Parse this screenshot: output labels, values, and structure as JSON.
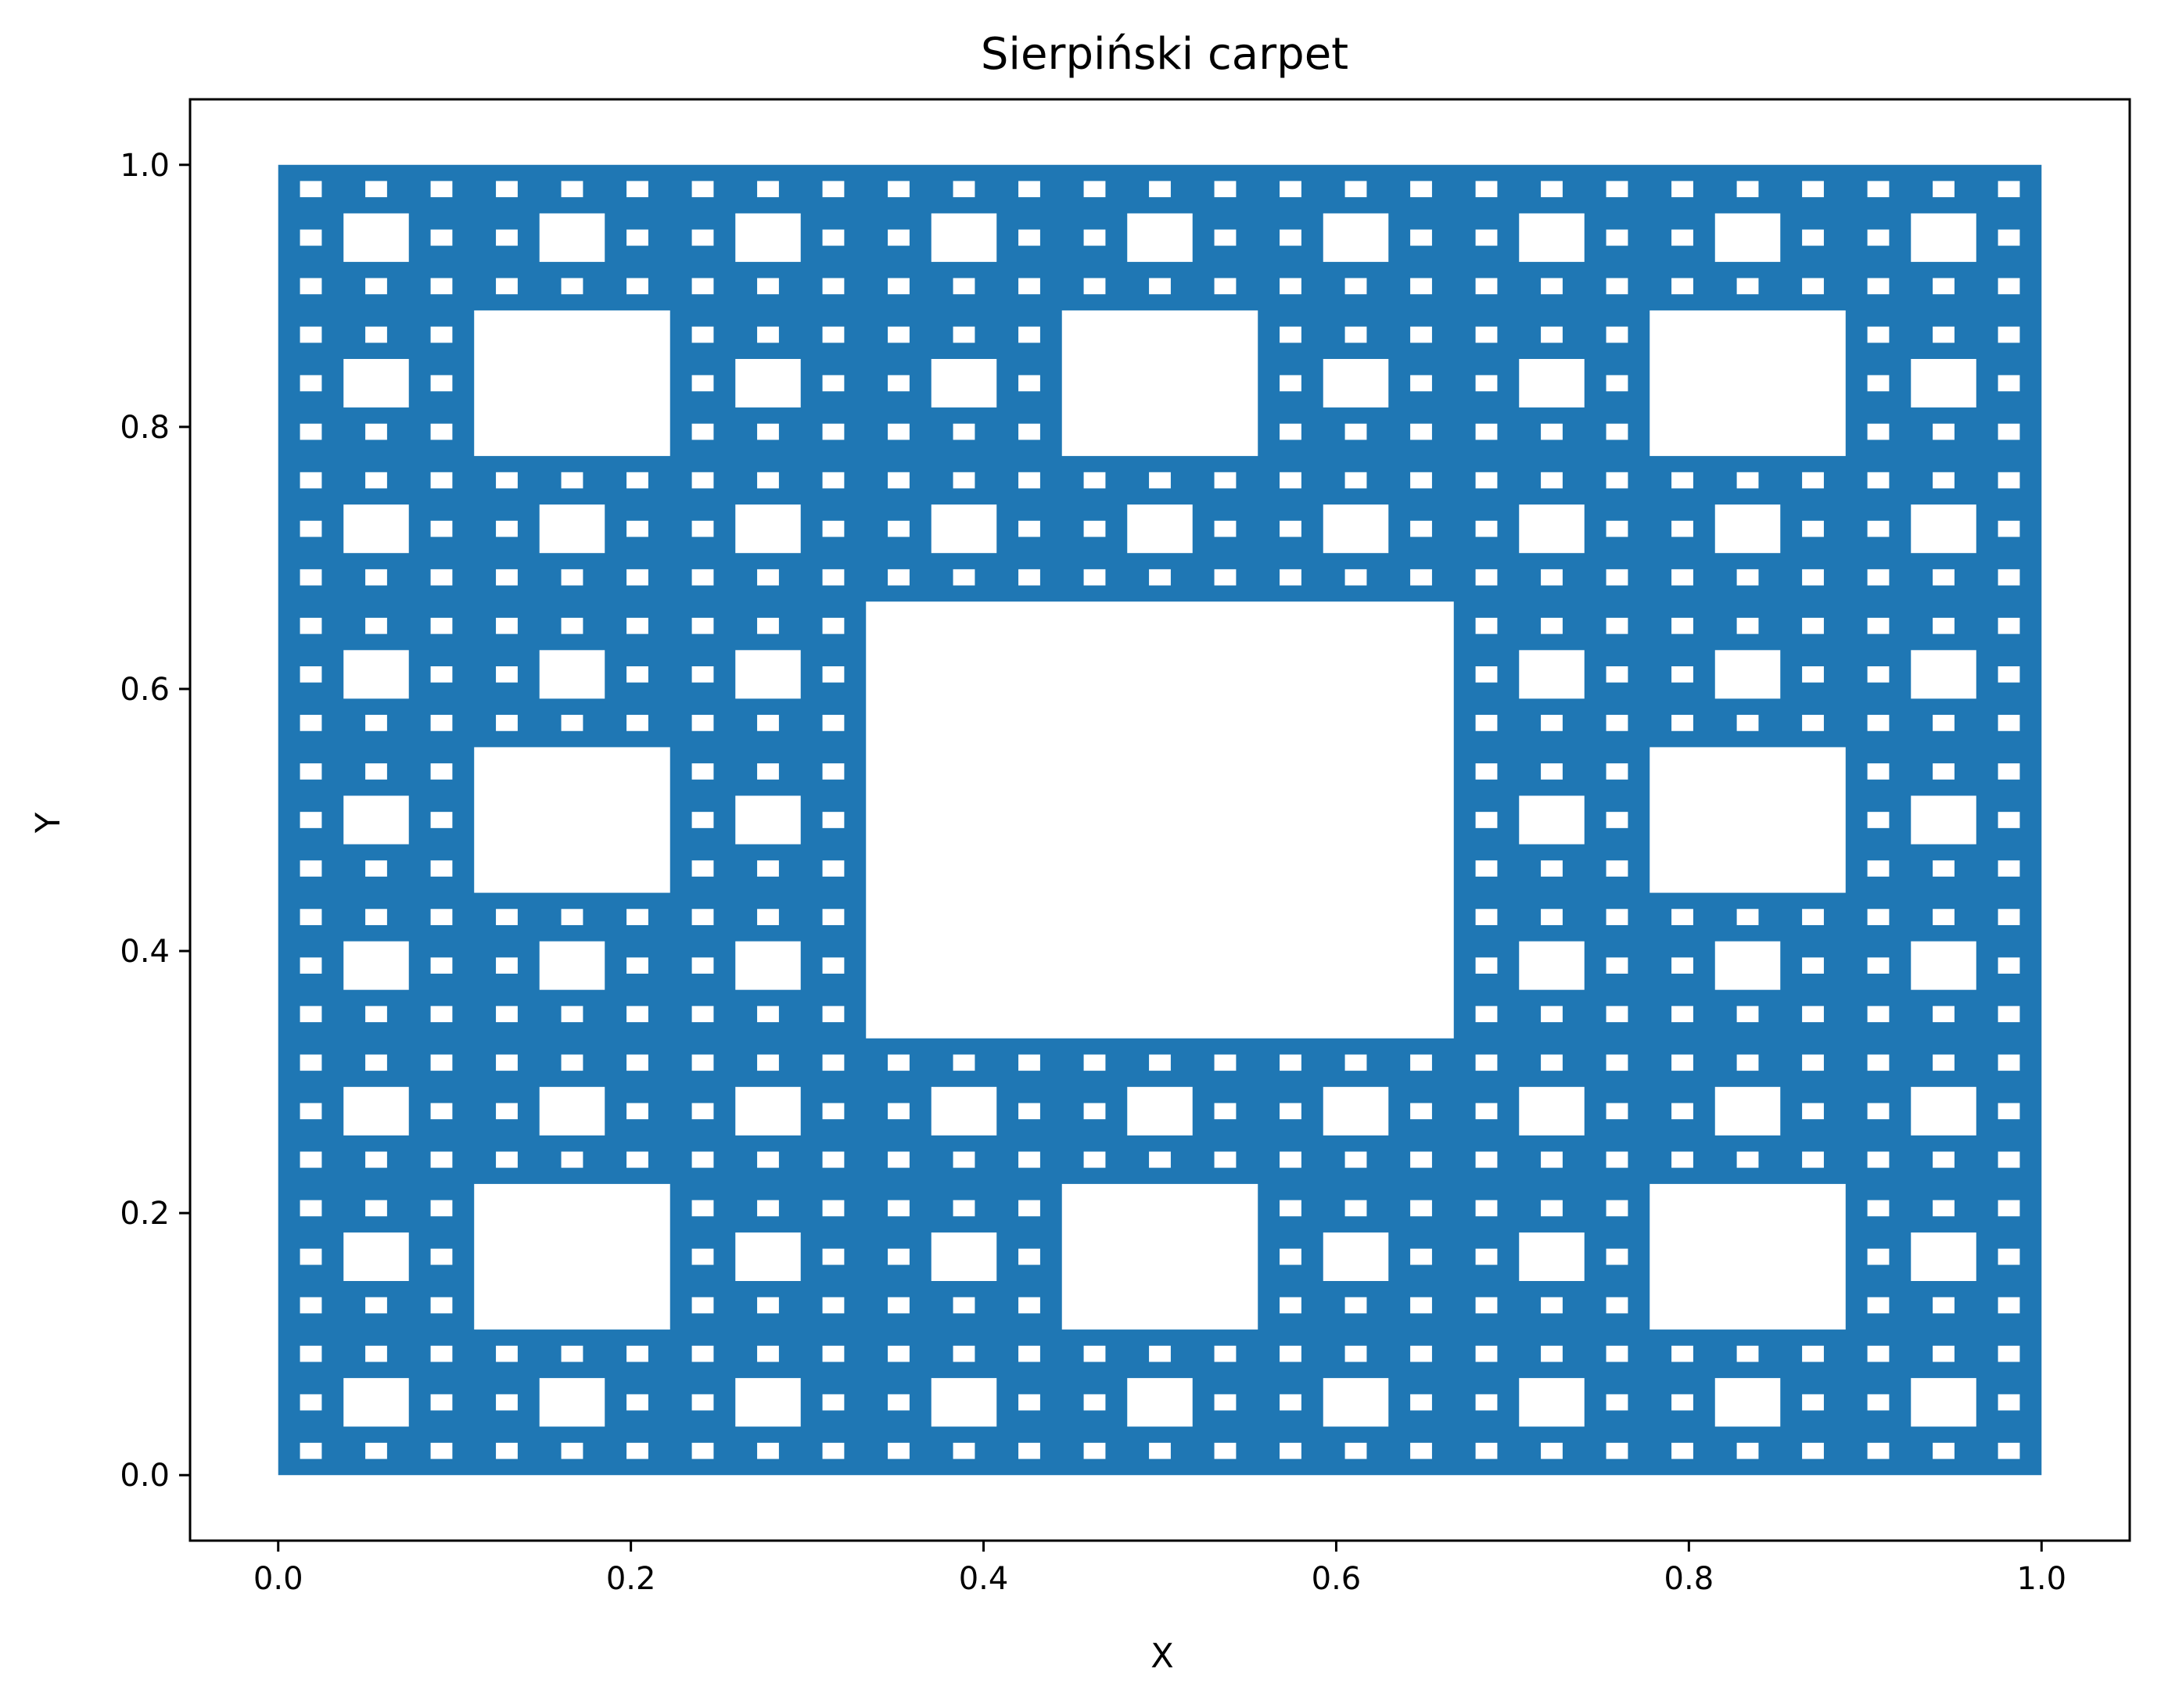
{
  "chart_data": {
    "type": "scatter",
    "title": "Sierpiński carpet",
    "xlabel": "X",
    "ylabel": "Y",
    "xlim": [
      -0.05,
      1.05
    ],
    "ylim": [
      -0.05,
      1.05
    ],
    "x_ticks": [
      0.0,
      0.2,
      0.4,
      0.6,
      0.8,
      1.0
    ],
    "y_ticks": [
      0.0,
      0.2,
      0.4,
      0.6,
      0.8,
      1.0
    ],
    "x_tick_labels": [
      "0.0",
      "0.2",
      "0.4",
      "0.6",
      "0.8",
      "1.0"
    ],
    "y_tick_labels": [
      "0.0",
      "0.2",
      "0.4",
      "0.6",
      "0.8",
      "1.0"
    ],
    "grid": false,
    "legend": "none",
    "series": [
      {
        "color": "#1f77b4",
        "fractal": "Sierpinski carpet",
        "x_range": [
          0.0,
          1.0
        ],
        "y_range": [
          0.0,
          1.0
        ],
        "iteration_depth": 4
      }
    ]
  }
}
